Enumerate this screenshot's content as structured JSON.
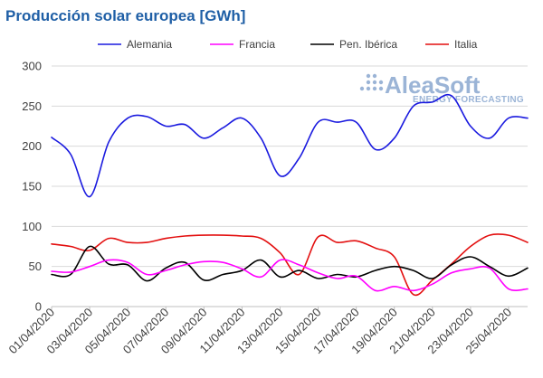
{
  "chart_data": {
    "type": "line",
    "title": "Producción solar europea [GWh]",
    "title_color": "#1f5fa6",
    "ylim": [
      0,
      300
    ],
    "yticks": [
      "0",
      "50",
      "100",
      "150",
      "200",
      "250",
      "300"
    ],
    "ytick_values": [
      0,
      50,
      100,
      150,
      200,
      250,
      300
    ],
    "xlim": [
      "2020-04-01",
      "2020-04-26"
    ],
    "xticks": [
      "01/04/2020",
      "03/04/2020",
      "05/04/2020",
      "07/04/2020",
      "09/04/2020",
      "11/04/2020",
      "13/04/2020",
      "15/04/2020",
      "17/04/2020",
      "19/04/2020",
      "21/04/2020",
      "23/04/2020",
      "25/04/2020"
    ],
    "grid": true,
    "legend_position": "top",
    "x": [
      "2020-04-01",
      "2020-04-02",
      "2020-04-03",
      "2020-04-04",
      "2020-04-05",
      "2020-04-06",
      "2020-04-07",
      "2020-04-08",
      "2020-04-09",
      "2020-04-10",
      "2020-04-11",
      "2020-04-12",
      "2020-04-13",
      "2020-04-14",
      "2020-04-15",
      "2020-04-16",
      "2020-04-17",
      "2020-04-18",
      "2020-04-19",
      "2020-04-20",
      "2020-04-21",
      "2020-04-22",
      "2020-04-23",
      "2020-04-24",
      "2020-04-25",
      "2020-04-26"
    ],
    "series": [
      {
        "name": "Alemania",
        "color": "#1a1adf",
        "values": [
          211,
          190,
          137,
          205,
          235,
          237,
          225,
          227,
          210,
          223,
          235,
          210,
          163,
          185,
          230,
          230,
          230,
          196,
          210,
          250,
          255,
          263,
          225,
          210,
          235,
          235
        ]
      },
      {
        "name": "Francia",
        "color": "#ff00ff",
        "values": [
          44,
          43,
          50,
          58,
          55,
          40,
          45,
          52,
          56,
          55,
          47,
          37,
          58,
          52,
          42,
          35,
          38,
          20,
          25,
          20,
          28,
          42,
          47,
          48,
          22,
          22
        ]
      },
      {
        "name": "Pen. Ibérica",
        "color": "#000000",
        "values": [
          40,
          40,
          75,
          53,
          52,
          32,
          48,
          55,
          33,
          40,
          45,
          58,
          37,
          45,
          35,
          40,
          37,
          45,
          50,
          45,
          35,
          52,
          62,
          50,
          38,
          48
        ]
      },
      {
        "name": "Italia",
        "color": "#e30f0f",
        "values": [
          78,
          75,
          70,
          85,
          80,
          80,
          85,
          88,
          89,
          89,
          88,
          85,
          67,
          40,
          87,
          80,
          82,
          73,
          62,
          15,
          33,
          53,
          75,
          89,
          89,
          80
        ]
      }
    ]
  },
  "logo": {
    "name": "AleaSoft",
    "tagline": "ENERGY FORECASTING",
    "color": "#8aa8d0"
  }
}
